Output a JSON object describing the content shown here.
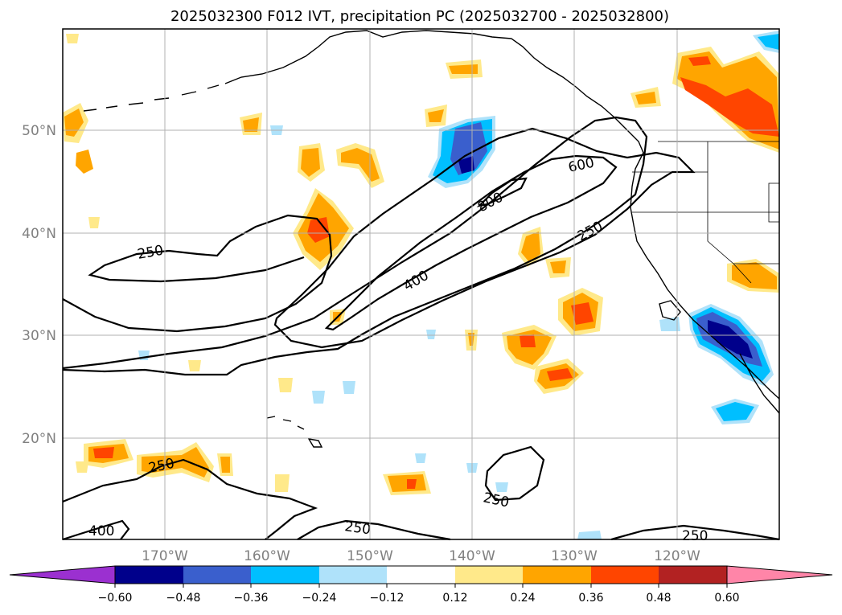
{
  "title": "2025032300 F012 IVT, precipitation PC (2025032700 - 2025032800)",
  "map": {
    "lat_labels": [
      "50°N",
      "40°N",
      "30°N",
      "20°N"
    ],
    "lon_labels": [
      "170°W",
      "160°W",
      "150°W",
      "140°W",
      "130°W",
      "120°W"
    ],
    "contour_labels": [
      "250",
      "250",
      "250",
      "250",
      "250",
      "400",
      "400",
      "600",
      "800",
      "250",
      "250"
    ]
  },
  "colorbar": {
    "ticks": [
      "−0.60",
      "−0.48",
      "−0.36",
      "−0.24",
      "−0.12",
      "0.12",
      "0.24",
      "0.36",
      "0.48",
      "0.60"
    ],
    "colors": [
      "#9b30d0",
      "#00008b",
      "#3a5fcd",
      "#00bfff",
      "#afe2fa",
      "#ffffff",
      "#ffe98a",
      "#ffa500",
      "#ff4500",
      "#b22222",
      "#ff85a8"
    ]
  },
  "colors": {
    "pos1": "#ffe98a",
    "pos2": "#ffa500",
    "pos3": "#ff4500",
    "neg1": "#afe2fa",
    "neg2": "#00bfff",
    "neg3": "#3a5fcd",
    "neg4": "#00008b",
    "grid": "#b0b0b0"
  }
}
